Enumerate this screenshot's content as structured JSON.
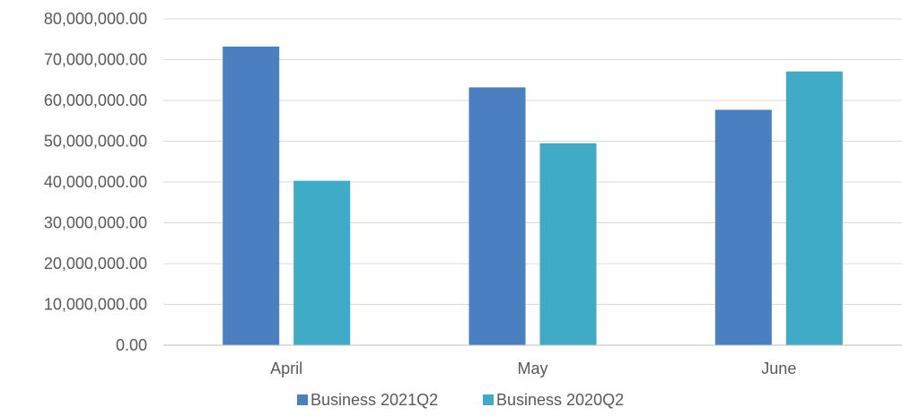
{
  "chart_data": {
    "type": "bar",
    "title": "",
    "xlabel": "",
    "ylabel": "",
    "categories": [
      "April",
      "May",
      "June"
    ],
    "series": [
      {
        "name": "Business 2021Q2",
        "color": "#4a7fc1",
        "values": [
          73200000,
          63200000,
          57700000
        ]
      },
      {
        "name": "Business 2020Q2",
        "color": "#3fabc6",
        "values": [
          40300000,
          49500000,
          67100000
        ]
      }
    ],
    "ylim": [
      0,
      80000000
    ],
    "ytick_step": 10000000,
    "yticks": [
      "0.00",
      "10,000,000.00",
      "20,000,000.00",
      "30,000,000.00",
      "40,000,000.00",
      "50,000,000.00",
      "60,000,000.00",
      "70,000,000.00",
      "80,000,000.00"
    ],
    "grid": true,
    "legend_position": "bottom"
  }
}
